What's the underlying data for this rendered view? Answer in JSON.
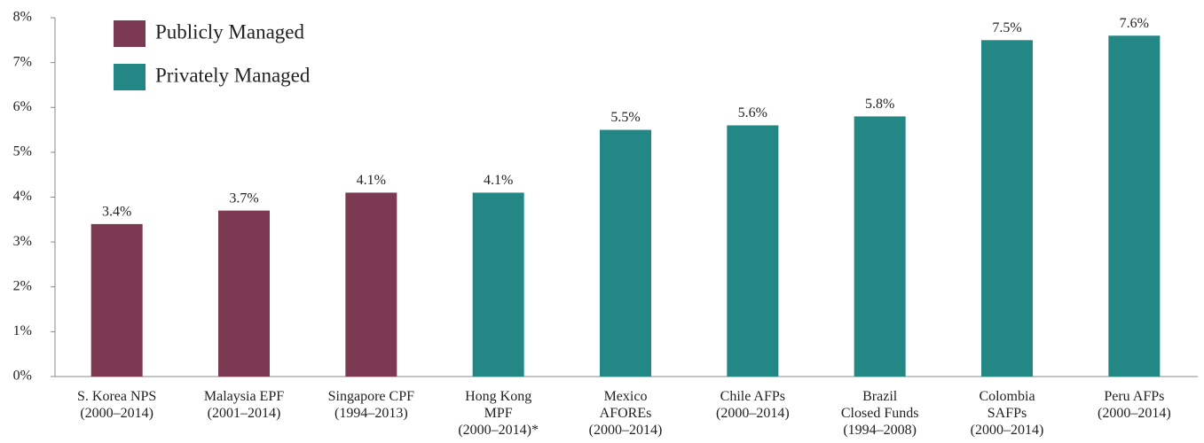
{
  "chart_data": {
    "type": "bar",
    "categories": [
      [
        "S. Korea NPS",
        "(2000–2014)"
      ],
      [
        "Malaysia EPF",
        "(2001–2014)"
      ],
      [
        "Singapore CPF",
        "(1994–2013)"
      ],
      [
        "Hong Kong",
        "MPF",
        "(2000–2014)*"
      ],
      [
        "Mexico",
        "AFOREs",
        "(2000–2014)"
      ],
      [
        "Chile AFPs",
        "(2000–2014)"
      ],
      [
        "Brazil",
        "Closed Funds",
        "(1994–2008)"
      ],
      [
        "Colombia",
        "SAFPs",
        "(2000–2014)"
      ],
      [
        "Peru AFPs",
        "(2000–2014)"
      ]
    ],
    "series": [
      {
        "name": "Publicly Managed",
        "color": "#7b3a52",
        "values": [
          3.4,
          3.7,
          4.1,
          null,
          null,
          null,
          null,
          null,
          null
        ],
        "value_labels": [
          "3.4%",
          "3.7%",
          "4.1%",
          null,
          null,
          null,
          null,
          null,
          null
        ]
      },
      {
        "name": "Privately Managed",
        "color": "#238785",
        "values": [
          null,
          null,
          null,
          4.1,
          5.5,
          5.6,
          5.8,
          7.5,
          7.6
        ],
        "value_labels": [
          null,
          null,
          null,
          "4.1%",
          "5.5%",
          "5.6%",
          "5.8%",
          "7.5%",
          "7.6%"
        ]
      }
    ],
    "ylim": [
      0,
      8
    ],
    "yticks": [
      {
        "value": 0,
        "label": "0%"
      },
      {
        "value": 1,
        "label": "1%"
      },
      {
        "value": 2,
        "label": "2%"
      },
      {
        "value": 3,
        "label": "3%"
      },
      {
        "value": 4,
        "label": "4%"
      },
      {
        "value": 5,
        "label": "5%"
      },
      {
        "value": 6,
        "label": "6%"
      },
      {
        "value": 7,
        "label": "7%"
      },
      {
        "value": 8,
        "label": "8%"
      }
    ],
    "grid": false,
    "legend": "top-left"
  }
}
